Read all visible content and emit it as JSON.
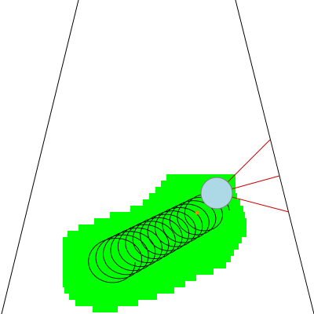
{
  "colors": {
    "background": "#ffffff",
    "track_border": "#000000",
    "explored_area": "#00ff00",
    "robot_body": "#add8e6",
    "robot_outline": "#808080",
    "sensor_ray": "#cc0000",
    "trajectory": "#000000",
    "target_marker": "#ff8000"
  },
  "scene": {
    "robot": {
      "icon": "robot-circle-icon",
      "sensor_count": 3
    },
    "path": {
      "icon": "trajectory-loop-icon"
    },
    "target": {
      "icon": "target-dot-icon"
    }
  }
}
